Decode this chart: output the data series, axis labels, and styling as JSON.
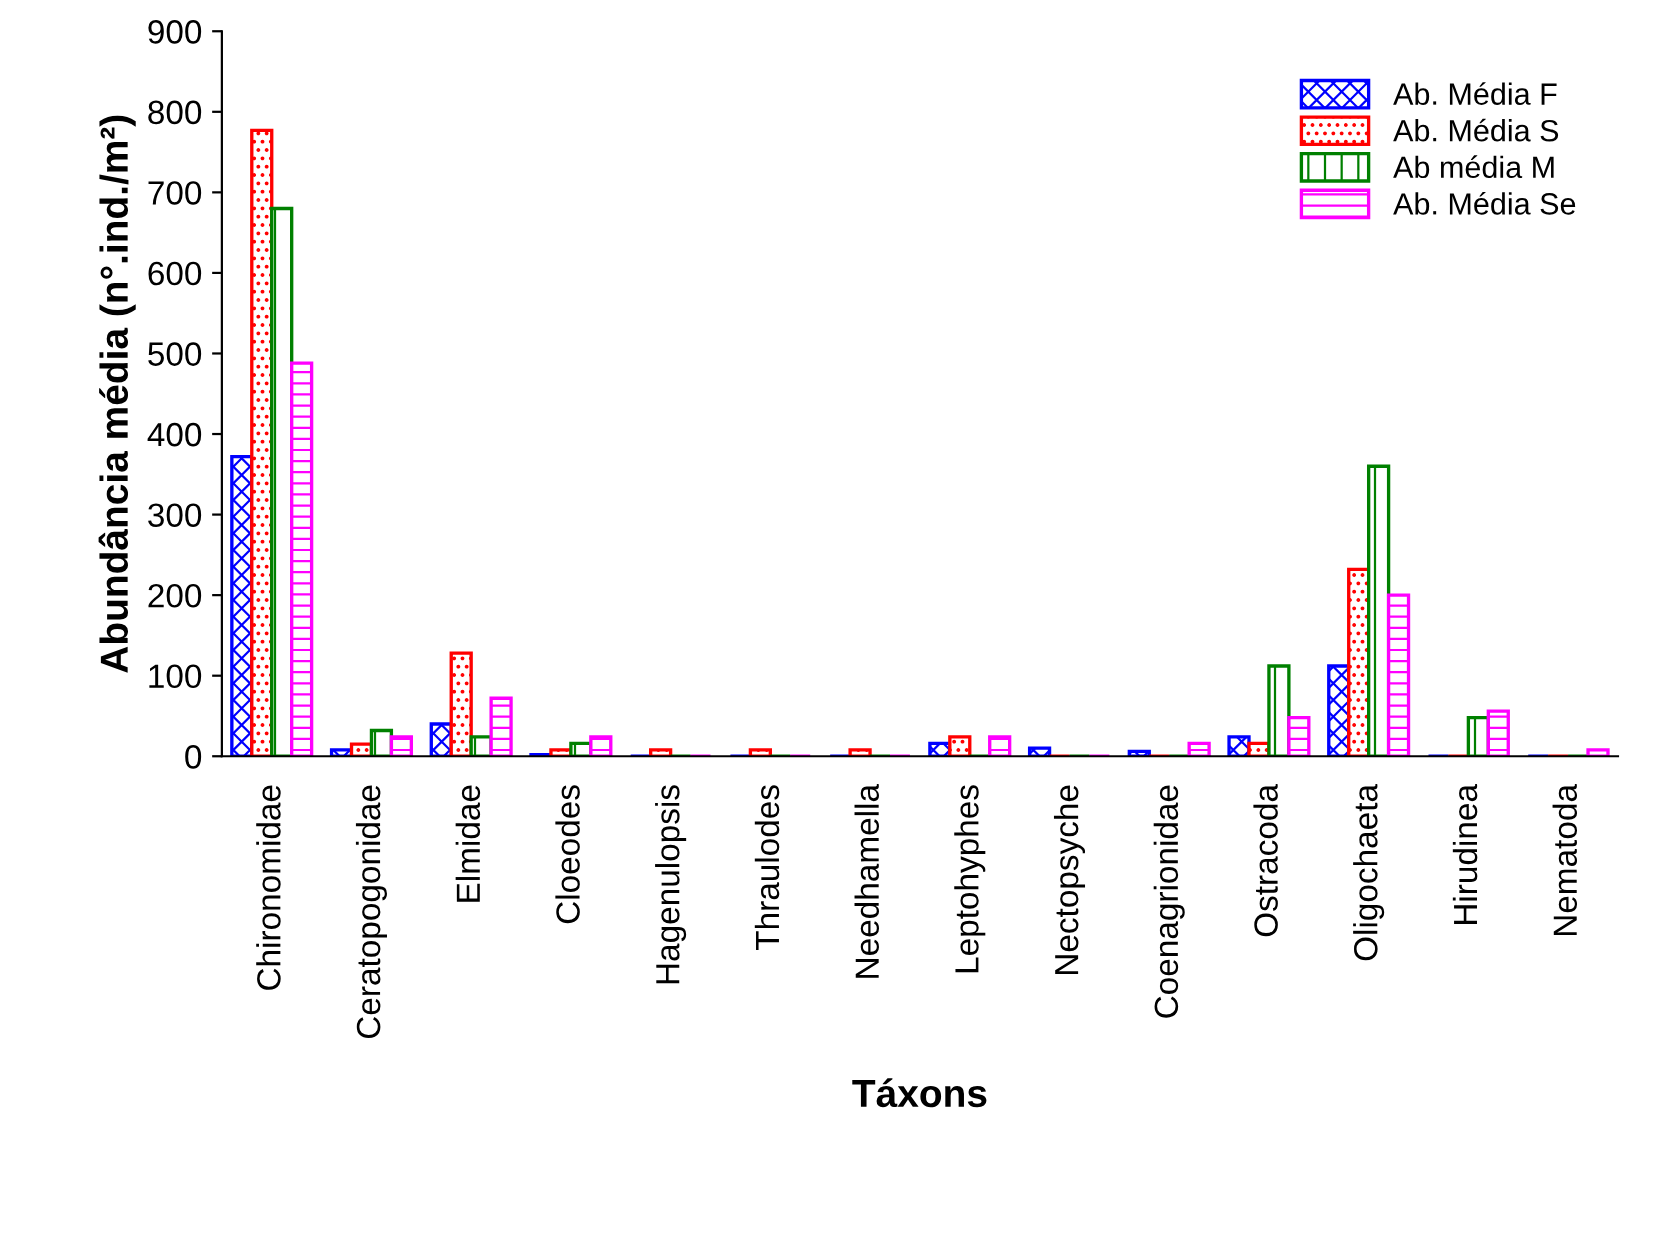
{
  "chart_data": {
    "type": "bar",
    "xlabel": "Táxons",
    "ylabel": "Abundância média (n°.ind./m²)",
    "categories": [
      "Chironomidae",
      "Ceratopogonidae",
      "Elmidae",
      "Cloeodes",
      "Hagenulopsis",
      "Thraulodes",
      "Needhamella",
      "Leptohyphes",
      "Nectopsyche",
      "Coenagrionidae",
      "Ostracoda",
      "Oligochaeta",
      "Hirudinea",
      "Nematoda"
    ],
    "series": [
      {
        "name": "Ab. Média F",
        "color": "#0000ff",
        "values": [
          372,
          8,
          40,
          2,
          0,
          0,
          0,
          16,
          10,
          6,
          24,
          112,
          0,
          0
        ]
      },
      {
        "name": "Ab. Média S",
        "color": "#ff0000",
        "values": [
          777,
          15,
          128,
          8,
          8,
          8,
          8,
          24,
          0,
          0,
          16,
          232,
          0,
          0
        ]
      },
      {
        "name": "Ab média M",
        "color": "#008000",
        "values": [
          680,
          32,
          24,
          16,
          0,
          0,
          0,
          0,
          0,
          0,
          112,
          360,
          48,
          0
        ]
      },
      {
        "name": "Ab. Média Se",
        "color": "#ff00ff",
        "values": [
          488,
          24,
          72,
          24,
          0,
          0,
          0,
          24,
          0,
          16,
          48,
          200,
          56,
          8
        ]
      }
    ],
    "ylim": [
      0,
      900
    ],
    "yticks": [
      0,
      100,
      200,
      300,
      400,
      500,
      600,
      700,
      800,
      900
    ],
    "grid": false,
    "legend": "top right"
  }
}
